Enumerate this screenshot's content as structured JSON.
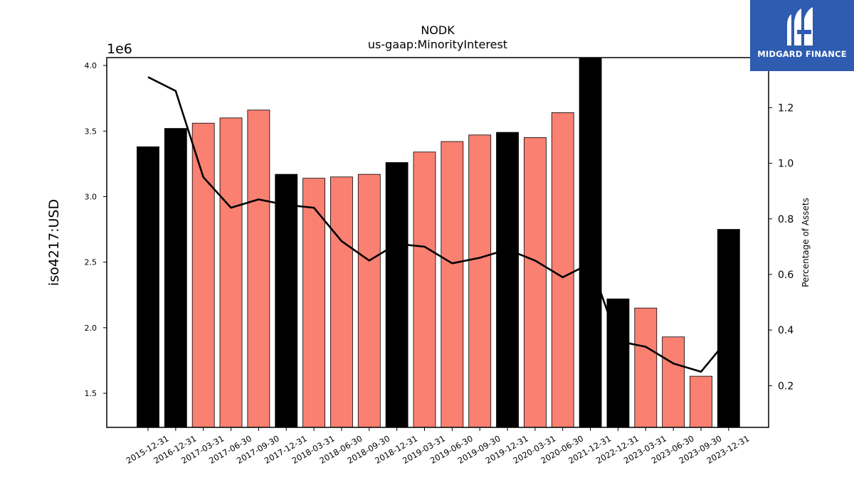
{
  "chart_data": {
    "type": "bar",
    "title": "NODK",
    "subtitle": "us-gaap:MinorityInterest",
    "ylabel": "iso4217:USD",
    "y2label": "Percentage of Assets",
    "y_offset_label": "1e6",
    "ylim": [
      1.24,
      4.06
    ],
    "y2lim": [
      0.05,
      1.38
    ],
    "yticks": [
      "1.5",
      "2.0",
      "2.5",
      "3.0",
      "3.5",
      "4.0"
    ],
    "y2ticks": [
      "0.2",
      "0.4",
      "0.6",
      "0.8",
      "1.0",
      "1.2"
    ],
    "categories": [
      "2015-12-31",
      "2016-12-31",
      "2017-03-31",
      "2017-06-30",
      "2017-09-30",
      "2017-12-31",
      "2018-03-31",
      "2018-06-30",
      "2018-09-30",
      "2018-12-31",
      "2019-03-31",
      "2019-06-30",
      "2019-09-30",
      "2019-12-31",
      "2020-03-31",
      "2020-06-30",
      "2021-12-31",
      "2022-12-31",
      "2023-03-31",
      "2023-06-30",
      "2023-09-30",
      "2023-12-31"
    ],
    "series": [
      {
        "type": "bar",
        "values": [
          3.38,
          3.52,
          3.56,
          3.6,
          3.66,
          3.17,
          3.14,
          3.15,
          3.17,
          3.26,
          3.34,
          3.42,
          3.47,
          3.49,
          3.45,
          3.64,
          4.06,
          2.22,
          2.15,
          1.93,
          1.63,
          2.75
        ],
        "annual": [
          true,
          true,
          false,
          false,
          false,
          true,
          false,
          false,
          false,
          true,
          false,
          false,
          false,
          true,
          false,
          false,
          true,
          true,
          false,
          false,
          false,
          true
        ]
      },
      {
        "type": "line",
        "axis": "right",
        "values": [
          1.31,
          1.26,
          0.95,
          0.84,
          0.87,
          0.85,
          0.84,
          0.72,
          0.65,
          0.71,
          0.7,
          0.64,
          0.66,
          0.69,
          0.65,
          0.59,
          0.64,
          0.36,
          0.34,
          0.28,
          0.25,
          0.37
        ]
      }
    ],
    "colors": {
      "annual": "#000000",
      "quarter": "#fa8072",
      "line": "#000000"
    }
  },
  "logo": {
    "text": "MIDGARD FINANCE",
    "background": "#2d5cb0"
  }
}
